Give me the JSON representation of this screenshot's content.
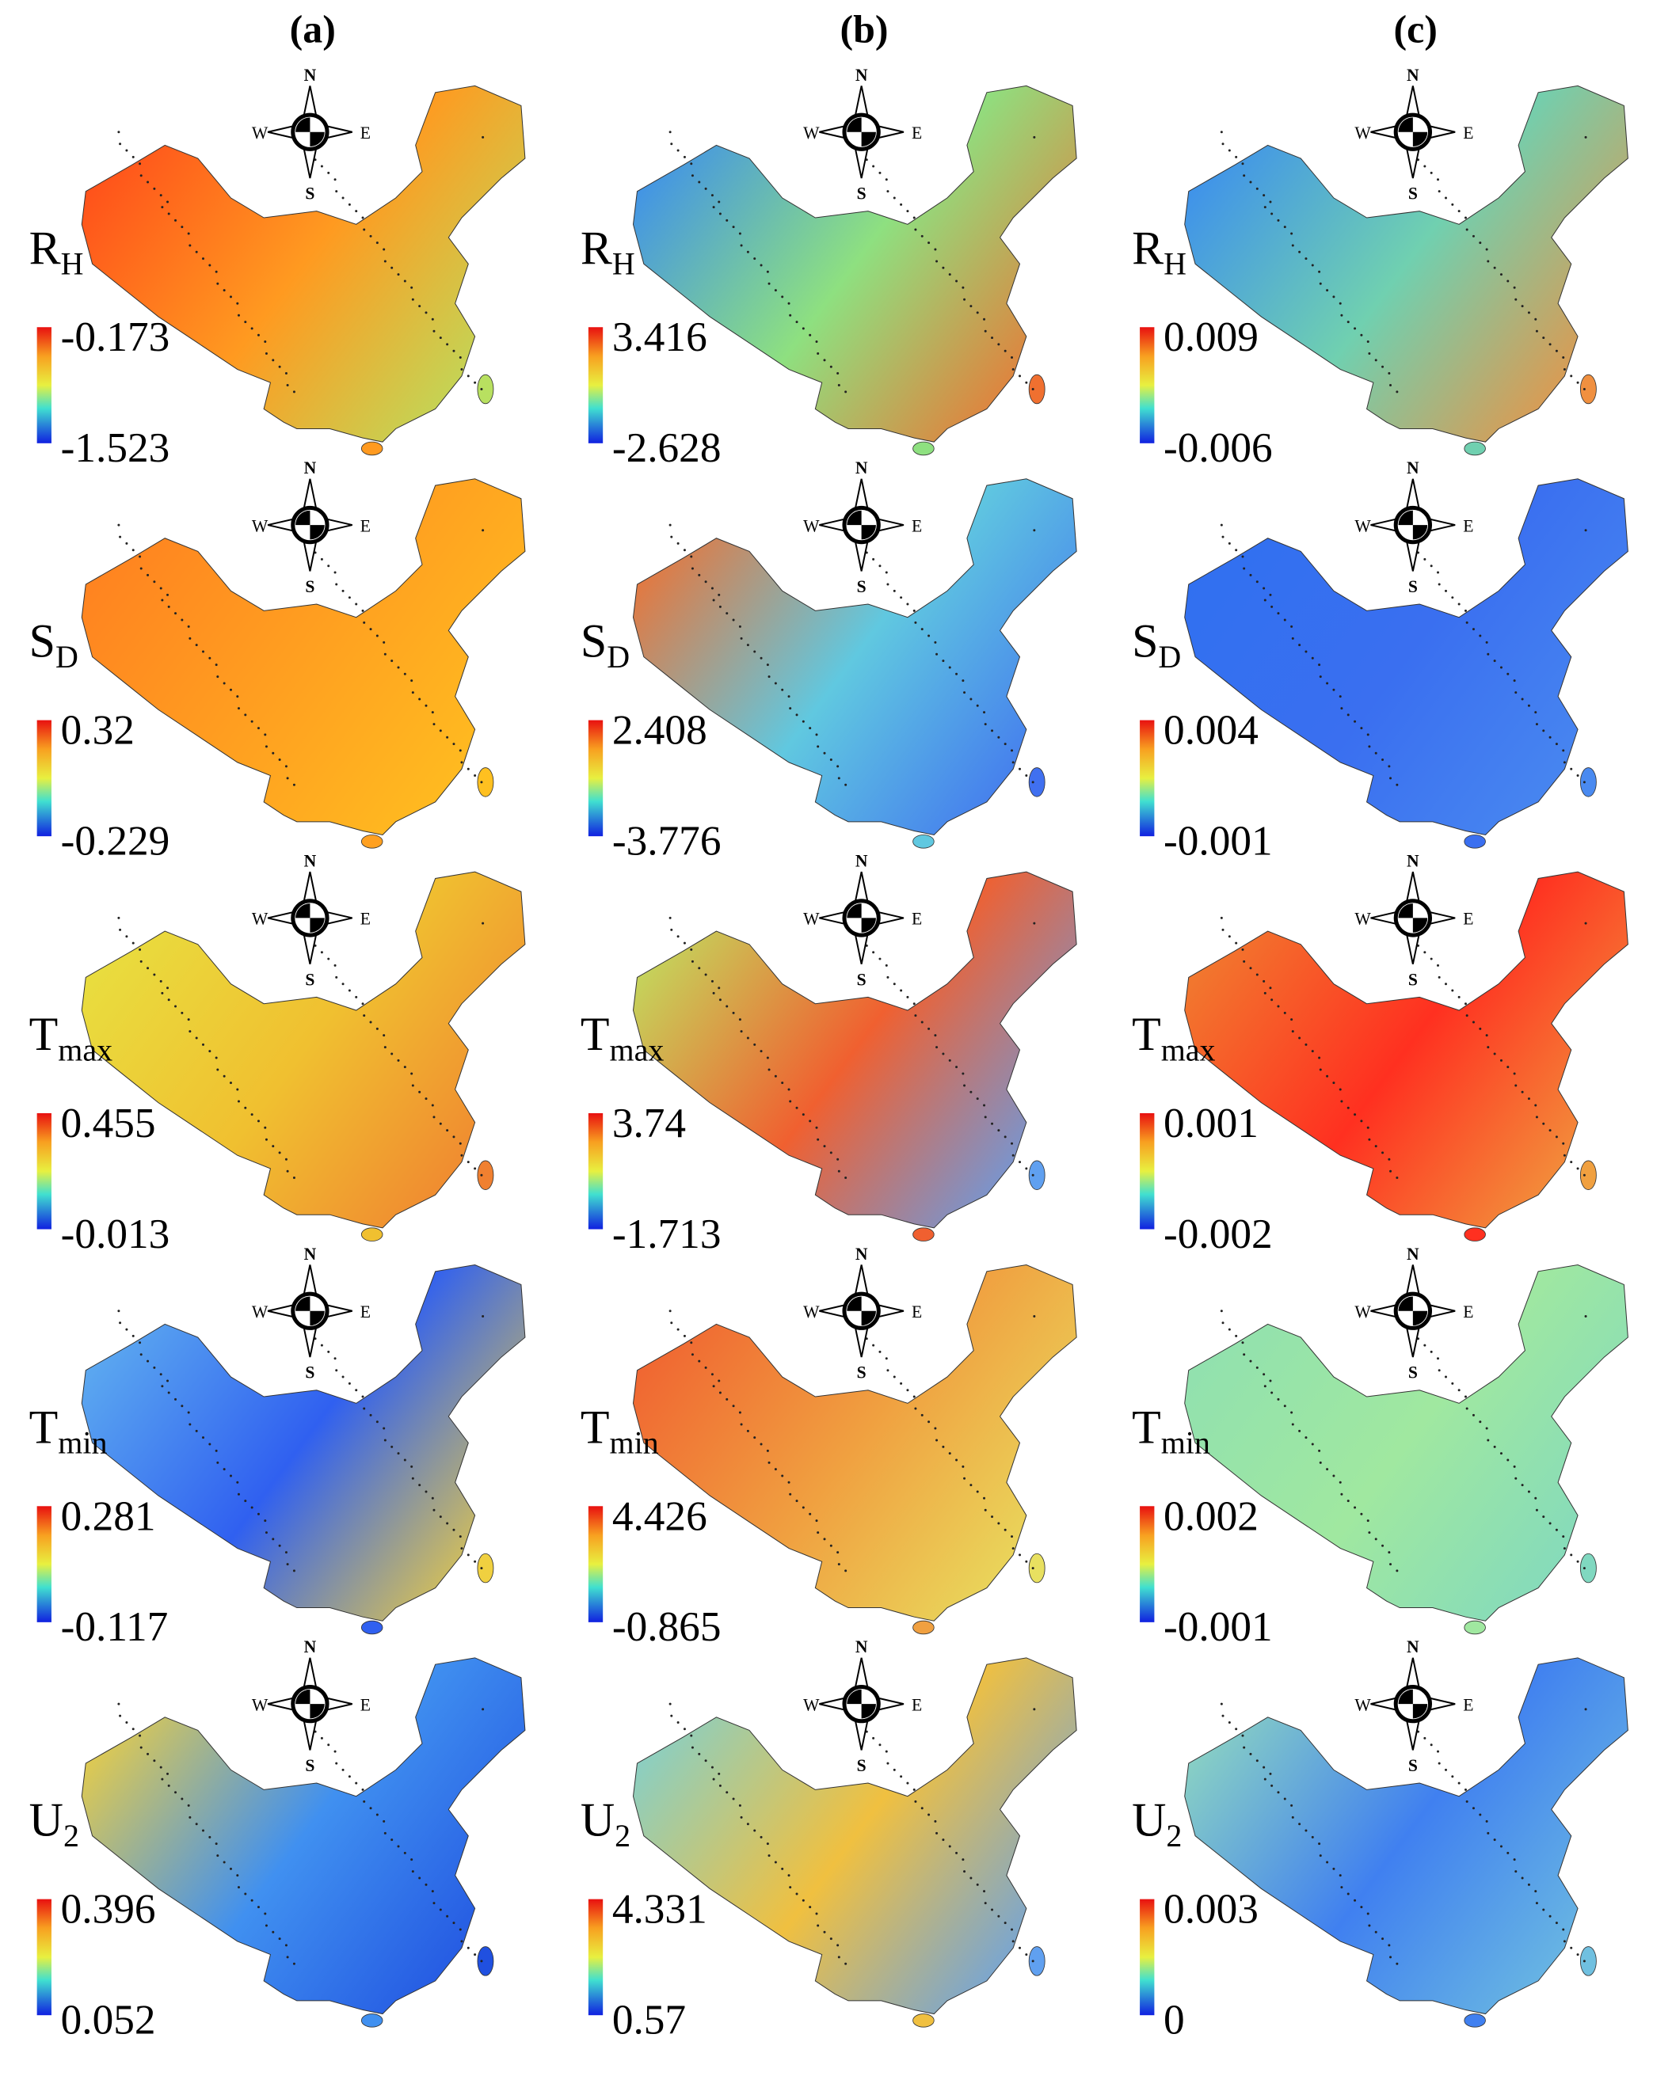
{
  "columns": [
    {
      "label": "(a)"
    },
    {
      "label": "(b)"
    },
    {
      "label": "(c)"
    }
  ],
  "compass": {
    "n": "N",
    "s": "S",
    "w": "W",
    "e": "E"
  },
  "rows": [
    {
      "variable": "R",
      "subscript": "H",
      "panels": [
        {
          "max": "-0.173",
          "min": "-1.523"
        },
        {
          "max": "3.416",
          "min": "-2.628"
        },
        {
          "max": "0.009",
          "min": "-0.006"
        }
      ]
    },
    {
      "variable": "S",
      "subscript": "D",
      "panels": [
        {
          "max": "0.32",
          "min": "-0.229"
        },
        {
          "max": "2.408",
          "min": "-3.776"
        },
        {
          "max": "0.004",
          "min": "-0.001"
        }
      ]
    },
    {
      "variable": "T",
      "subscript": "max",
      "panels": [
        {
          "max": "0.455",
          "min": "-0.013"
        },
        {
          "max": "3.74",
          "min": "-1.713"
        },
        {
          "max": "0.001",
          "min": "-0.002"
        }
      ]
    },
    {
      "variable": "T",
      "subscript": "min",
      "panels": [
        {
          "max": "0.281",
          "min": "-0.117"
        },
        {
          "max": "4.426",
          "min": "-0.865"
        },
        {
          "max": "0.002",
          "min": "-0.001"
        }
      ]
    },
    {
      "variable": "U",
      "subscript": "2",
      "panels": [
        {
          "max": "0.396",
          "min": "0.052"
        },
        {
          "max": "4.331",
          "min": "0.57"
        },
        {
          "max": "0.003",
          "min": "0"
        }
      ]
    }
  ]
}
